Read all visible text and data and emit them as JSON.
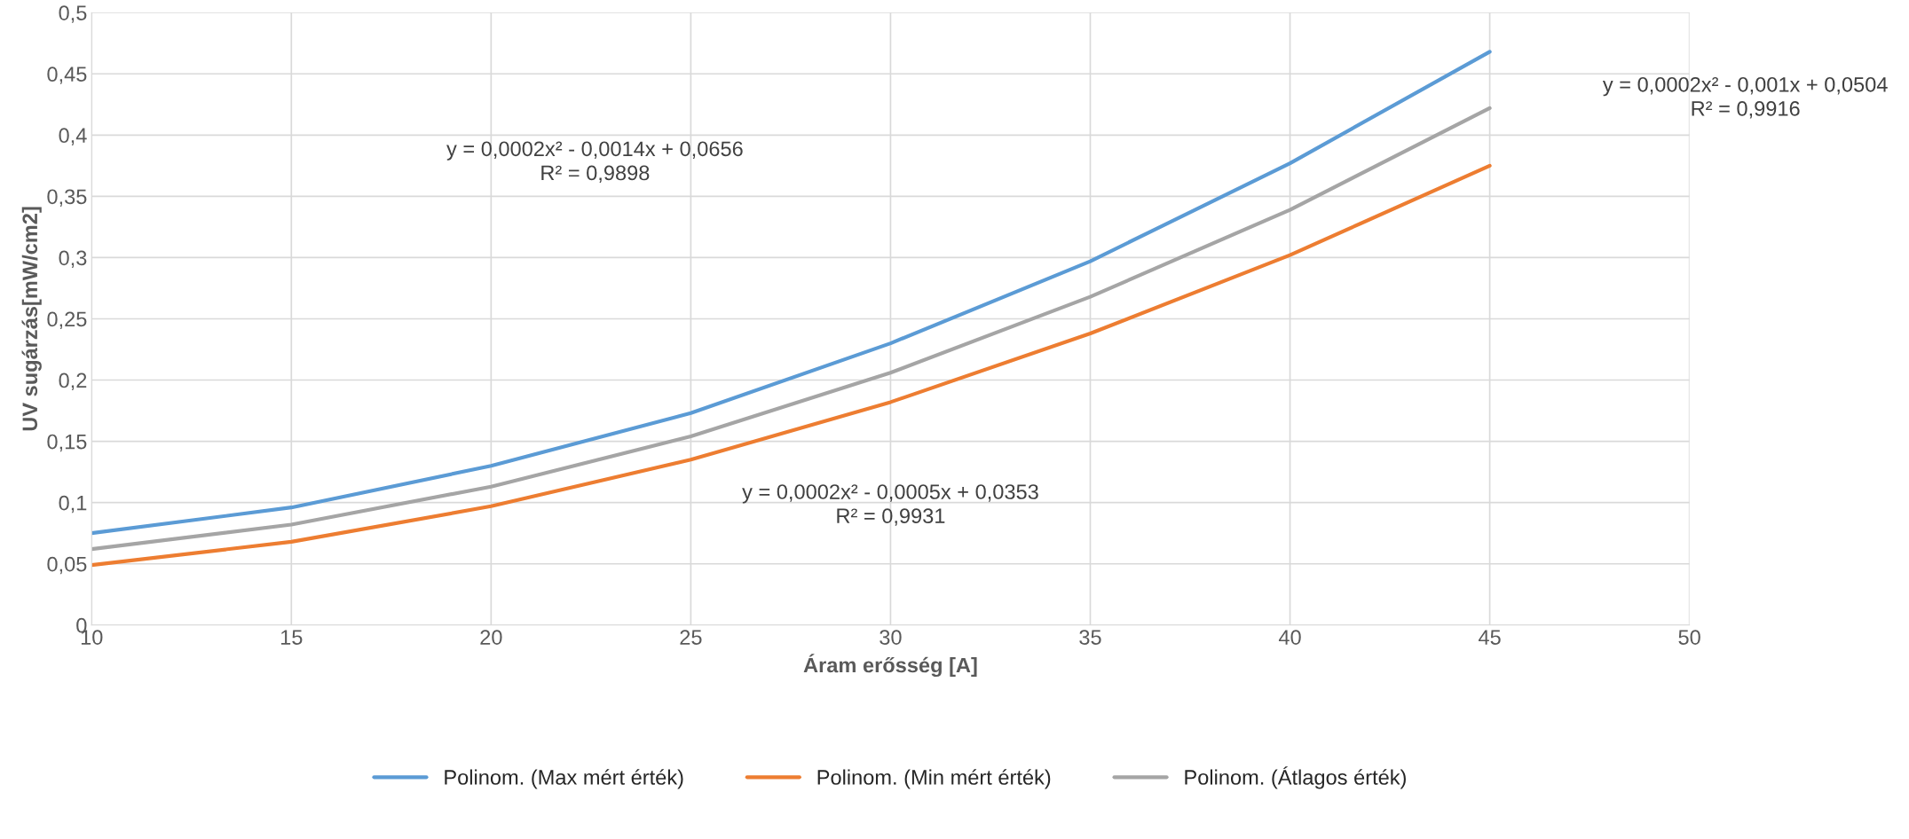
{
  "chart_data": {
    "type": "line",
    "xlabel": "Áram erősség [A]",
    "ylabel": "UV sugárzás[mW/cm2]",
    "x": [
      10,
      15,
      20,
      25,
      30,
      35,
      40,
      45
    ],
    "series": [
      {
        "name": "Polinom. (Max mért érték)",
        "color": "#5b9bd5",
        "values": [
          0.075,
          0.096,
          0.13,
          0.173,
          0.23,
          0.297,
          0.377,
          0.468
        ]
      },
      {
        "name": "Polinom. (Min mért érték)",
        "color": "#ed7d31",
        "values": [
          0.049,
          0.068,
          0.097,
          0.135,
          0.182,
          0.238,
          0.302,
          0.375
        ]
      },
      {
        "name": "Polinom. (Átlagos érték)",
        "color": "#a5a5a5",
        "values": [
          0.062,
          0.082,
          0.113,
          0.154,
          0.206,
          0.268,
          0.339,
          0.422
        ]
      }
    ],
    "xlim": [
      10,
      50
    ],
    "xticks": [
      10,
      15,
      20,
      25,
      30,
      35,
      40,
      45,
      50
    ],
    "ylim": [
      0,
      0.5
    ],
    "yticks": [
      {
        "value": 0,
        "label": "0"
      },
      {
        "value": 0.05,
        "label": "0,05"
      },
      {
        "value": 0.1,
        "label": "0,1"
      },
      {
        "value": 0.15,
        "label": "0,15"
      },
      {
        "value": 0.2,
        "label": "0,2"
      },
      {
        "value": 0.25,
        "label": "0,25"
      },
      {
        "value": 0.3,
        "label": "0,3"
      },
      {
        "value": 0.35,
        "label": "0,35"
      },
      {
        "value": 0.4,
        "label": "0,4"
      },
      {
        "value": 0.45,
        "label": "0,45"
      },
      {
        "value": 0.5,
        "label": "0,5"
      }
    ],
    "grid": true,
    "legend": "bottom",
    "marker": "none",
    "line_style": "solid",
    "annotations": [
      "y = 0,0002x² - 0,0014x + 0,0656\nR² = 0,9898",
      "y = 0,0002x² - 0,001x + 0,0504\nR² = 0,9916",
      "y = 0,0002x² - 0,0005x + 0,0353\nR² = 0,9931"
    ]
  }
}
